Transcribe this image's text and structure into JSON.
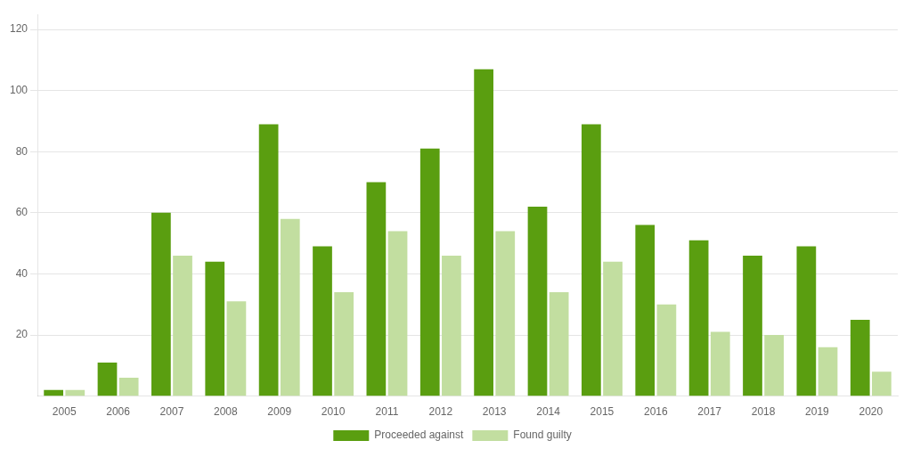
{
  "chart_data": {
    "type": "bar",
    "categories": [
      "2005",
      "2006",
      "2007",
      "2008",
      "2009",
      "2010",
      "2011",
      "2012",
      "2013",
      "2014",
      "2015",
      "2016",
      "2017",
      "2018",
      "2019",
      "2020"
    ],
    "series": [
      {
        "name": "Proceeded against",
        "color": "#5a9e10",
        "values": [
          2,
          11,
          60,
          44,
          89,
          49,
          70,
          81,
          107,
          62,
          89,
          56,
          51,
          46,
          49,
          25
        ]
      },
      {
        "name": "Found guilty",
        "color": "#c2dea0",
        "values": [
          2,
          6,
          46,
          31,
          58,
          34,
          54,
          46,
          54,
          34,
          44,
          30,
          21,
          20,
          16,
          8
        ]
      }
    ],
    "ylim": [
      0,
      125
    ],
    "yticks": [
      20,
      40,
      60,
      80,
      100,
      120
    ],
    "grid": true,
    "legend": "bottom"
  }
}
